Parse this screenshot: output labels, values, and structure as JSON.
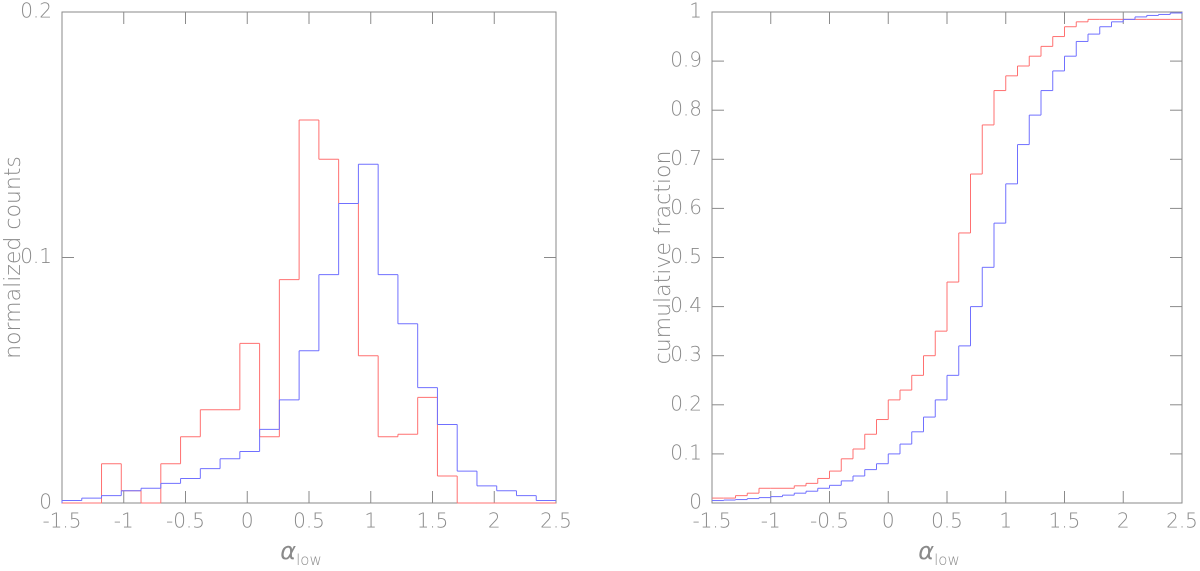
{
  "chart_data": [
    {
      "type": "histogram",
      "y_label": "normalized counts",
      "x_label": "α",
      "x_label_sub": "low",
      "xlim": [
        -1.5,
        2.5
      ],
      "xticks": [
        -1.5,
        -1,
        -0.5,
        0,
        0.5,
        1,
        1.5,
        2,
        2.5
      ],
      "ylim": [
        0,
        0.2
      ],
      "yticks": [
        0,
        0.1,
        0.2
      ],
      "bins": [
        -1.5,
        -1.34,
        -1.18,
        -1.02,
        -0.86,
        -0.7,
        -0.54,
        -0.38,
        -0.22,
        -0.06,
        0.1,
        0.26,
        0.42,
        0.58,
        0.74,
        0.9,
        1.06,
        1.22,
        1.38,
        1.54,
        1.7,
        1.86,
        2.02,
        2.18,
        2.34,
        2.5
      ],
      "series": [
        {
          "color": "#ff7070",
          "values": [
            0,
            0,
            0.016,
            0.005,
            0,
            0.016,
            0.027,
            0.038,
            0.038,
            0.065,
            0.027,
            0.091,
            0.156,
            0.14,
            0.122,
            0.06,
            0.027,
            0.028,
            0.043,
            0.011,
            0,
            0,
            0,
            0,
            0
          ]
        },
        {
          "color": "#7070ff",
          "values": [
            0.001,
            0.002,
            0.003,
            0.005,
            0.006,
            0.008,
            0.01,
            0.014,
            0.018,
            0.021,
            0.03,
            0.042,
            0.062,
            0.093,
            0.122,
            0.138,
            0.093,
            0.073,
            0.047,
            0.032,
            0.013,
            0.007,
            0.005,
            0.003,
            0.001
          ]
        }
      ]
    },
    {
      "type": "step",
      "y_label": "cumulative fraction",
      "x_label": "α",
      "x_label_sub": "low",
      "xlim": [
        -1.5,
        2.5
      ],
      "xticks": [
        -1.5,
        -1,
        -0.5,
        0,
        0.5,
        1,
        1.5,
        2,
        2.5
      ],
      "ylim": [
        0,
        1
      ],
      "yticks": [
        0,
        0.1,
        0.2,
        0.3,
        0.4,
        0.5,
        0.6,
        0.7,
        0.8,
        0.9,
        1
      ],
      "x": [
        -1.5,
        -1.4,
        -1.3,
        -1.2,
        -1.1,
        -1.0,
        -0.9,
        -0.8,
        -0.7,
        -0.6,
        -0.5,
        -0.4,
        -0.3,
        -0.2,
        -0.1,
        0,
        0.1,
        0.2,
        0.3,
        0.4,
        0.5,
        0.6,
        0.7,
        0.8,
        0.9,
        1.0,
        1.1,
        1.2,
        1.3,
        1.4,
        1.5,
        1.6,
        1.7,
        1.8,
        1.9,
        2.0,
        2.1,
        2.2,
        2.3,
        2.4,
        2.5
      ],
      "series": [
        {
          "color": "#ff7070",
          "values": [
            0.01,
            0.01,
            0.015,
            0.02,
            0.03,
            0.03,
            0.03,
            0.035,
            0.04,
            0.05,
            0.065,
            0.09,
            0.11,
            0.14,
            0.17,
            0.21,
            0.23,
            0.26,
            0.3,
            0.35,
            0.45,
            0.55,
            0.67,
            0.77,
            0.84,
            0.87,
            0.89,
            0.91,
            0.93,
            0.95,
            0.97,
            0.98,
            0.985,
            0.985,
            0.985,
            0.985,
            0.985,
            0.985,
            0.985,
            0.985,
            0.985
          ]
        },
        {
          "color": "#7070ff",
          "values": [
            0.005,
            0.006,
            0.007,
            0.009,
            0.011,
            0.013,
            0.016,
            0.02,
            0.024,
            0.03,
            0.036,
            0.045,
            0.055,
            0.068,
            0.08,
            0.1,
            0.12,
            0.145,
            0.175,
            0.21,
            0.26,
            0.32,
            0.4,
            0.48,
            0.57,
            0.65,
            0.73,
            0.79,
            0.84,
            0.88,
            0.91,
            0.94,
            0.955,
            0.97,
            0.98,
            0.985,
            0.99,
            0.993,
            0.995,
            0.998,
            1.0
          ]
        }
      ]
    }
  ]
}
